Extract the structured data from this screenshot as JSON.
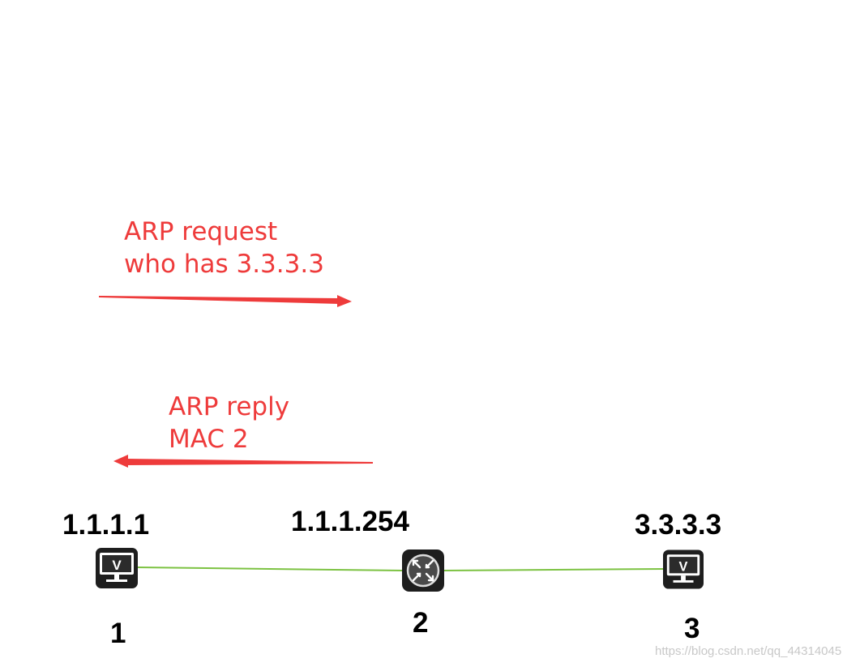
{
  "annotations": {
    "request": {
      "line1": "ARP request",
      "line2": "who has 3.3.3.3",
      "direction": "right",
      "color": "#ee3b3b"
    },
    "reply": {
      "line1": "ARP reply",
      "line2": "MAC 2",
      "direction": "left",
      "color": "#ee3b3b"
    }
  },
  "nodes": [
    {
      "id": "1",
      "type": "pc",
      "icon": "monitor-icon",
      "ip": "1.1.1.1",
      "label": "1"
    },
    {
      "id": "2",
      "type": "router",
      "icon": "router-icon",
      "ip": "1.1.1.254",
      "label": "2"
    },
    {
      "id": "3",
      "type": "pc",
      "icon": "monitor-icon",
      "ip": "3.3.3.3",
      "label": "3"
    }
  ],
  "links": [
    {
      "from": "1",
      "to": "2",
      "color": "#7cc242"
    },
    {
      "from": "2",
      "to": "3",
      "color": "#7cc242"
    }
  ],
  "watermark": "https://blog.csdn.net/qq_44314045"
}
